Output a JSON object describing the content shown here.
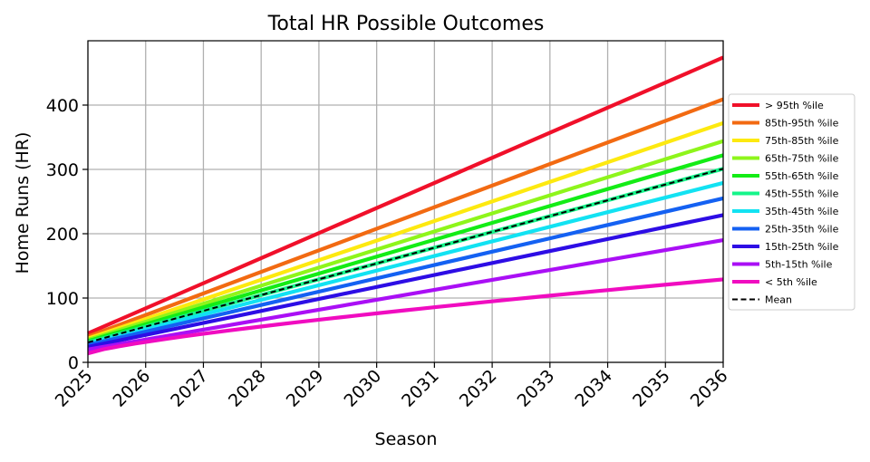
{
  "chart_data": {
    "type": "line",
    "title": "Total HR Possible Outcomes",
    "xlabel": "Season",
    "ylabel": "Home Runs (HR)",
    "x": [
      2025,
      2036
    ],
    "xticks": [
      2025,
      2026,
      2027,
      2028,
      2029,
      2030,
      2031,
      2032,
      2033,
      2034,
      2035,
      2036
    ],
    "xlim": [
      2025,
      2036
    ],
    "ylim": [
      0,
      500
    ],
    "yticks": [
      0,
      100,
      200,
      300,
      400
    ],
    "grid": true,
    "legend_position": "right",
    "series": [
      {
        "name": "> 95th %ile",
        "color": "#f0102a",
        "style": "solid",
        "values": [
          45,
          474
        ]
      },
      {
        "name": "85th-95th %ile",
        "color": "#f26a12",
        "style": "solid",
        "values": [
          40,
          409
        ]
      },
      {
        "name": "75th-85th %ile",
        "color": "#fde910",
        "style": "solid",
        "values": [
          37,
          372
        ]
      },
      {
        "name": "65th-75th %ile",
        "color": "#8ef51b",
        "style": "solid",
        "values": [
          35,
          344
        ]
      },
      {
        "name": "55th-65th %ile",
        "color": "#14ec16",
        "style": "solid",
        "values": [
          33,
          322
        ]
      },
      {
        "name": "45th-55th %ile",
        "color": "#14f58a",
        "style": "solid",
        "values": [
          31,
          301
        ]
      },
      {
        "name": "35th-45th %ile",
        "color": "#12e2f2",
        "style": "solid",
        "values": [
          29,
          279
        ]
      },
      {
        "name": "25th-35th %ile",
        "color": "#1461f2",
        "style": "solid",
        "values": [
          27,
          255
        ]
      },
      {
        "name": "15th-25th %ile",
        "color": "#2d0de5",
        "style": "solid",
        "values": [
          24,
          229
        ]
      },
      {
        "name": "5th-15th %ile",
        "color": "#aa0ff5",
        "style": "solid",
        "values": [
          20,
          190
        ]
      },
      {
        "name": "< 5th %ile",
        "color": "#f00cc0",
        "style": "solid",
        "curve": "concave",
        "values": [
          14,
          129
        ]
      },
      {
        "name": "Mean",
        "color": "#000000",
        "style": "dashed",
        "values": [
          31,
          301
        ]
      }
    ]
  }
}
